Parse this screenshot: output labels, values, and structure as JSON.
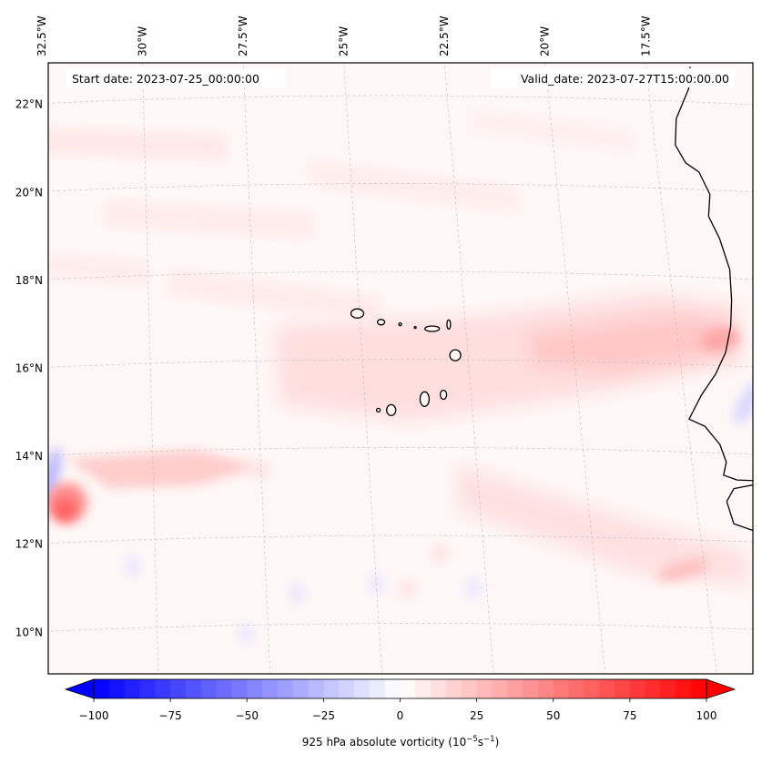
{
  "chart_data": {
    "type": "heatmap",
    "title": "",
    "map": {
      "projection": "conic",
      "lon_range": [
        -33,
        -15.5
      ],
      "lat_range": [
        9,
        22.8
      ],
      "lon_ticks": [
        {
          "value": -32.5,
          "label": "32.5°W"
        },
        {
          "value": -30,
          "label": "30°W"
        },
        {
          "value": -27.5,
          "label": "27.5°W"
        },
        {
          "value": -25,
          "label": "25°W"
        },
        {
          "value": -22.5,
          "label": "22.5°W"
        },
        {
          "value": -20,
          "label": "20°W"
        },
        {
          "value": -17.5,
          "label": "17.5°W"
        }
      ],
      "lat_ticks": [
        {
          "value": 22,
          "label": "22°N"
        },
        {
          "value": 20,
          "label": "20°N"
        },
        {
          "value": 18,
          "label": "18°N"
        },
        {
          "value": 16,
          "label": "16°N"
        },
        {
          "value": 14,
          "label": "14°N"
        },
        {
          "value": 12,
          "label": "12°N"
        },
        {
          "value": 10,
          "label": "10°N"
        }
      ],
      "gridlines": true,
      "coastlines": true
    },
    "annotations": {
      "start_date": "Start date: 2023-07-25_00:00:00",
      "valid_date": "Valid_date: 2023-07-27T15:00:00.00"
    },
    "field": {
      "variable": "925 hPa absolute vorticity",
      "units": "10^-5 s^-1",
      "background_value": 3,
      "features": [
        {
          "name": "vortex-core",
          "lon": -32.0,
          "lat": 12.9,
          "peak": 60,
          "description": "strong positive vorticity maximum with curved tail to the east"
        },
        {
          "name": "vortex-tail",
          "lon": -30.0,
          "lat": 13.6,
          "peak": 25
        },
        {
          "name": "vortex-negative-arc",
          "lon": -32.4,
          "lat": 13.2,
          "peak": -30
        },
        {
          "name": "coastal-band-max",
          "lon": -16.5,
          "lat": 16.6,
          "peak": 35
        },
        {
          "name": "zonal-positive-band",
          "lon": -21.0,
          "lat": 16.0,
          "peak": 20
        },
        {
          "name": "southern-band-max",
          "lon": -18.0,
          "lat": 11.3,
          "peak": 25
        },
        {
          "name": "coastal-negative-patch",
          "lon": -16.0,
          "lat": 15.2,
          "peak": -15
        }
      ]
    },
    "colorbar": {
      "label_main": "925 hPa absolute vorticity (10",
      "label_exp1": "−5",
      "label_mid": "s",
      "label_exp2": "−1",
      "label_end": ")",
      "colormap": "bwr",
      "vmin": -100,
      "vmax": 100,
      "levels": 41,
      "extend": "both",
      "ticks": [
        {
          "value": -100,
          "label": "−100"
        },
        {
          "value": -75,
          "label": "−75"
        },
        {
          "value": -50,
          "label": "−50"
        },
        {
          "value": -25,
          "label": "−25"
        },
        {
          "value": 0,
          "label": "0"
        },
        {
          "value": 25,
          "label": "25"
        },
        {
          "value": 50,
          "label": "50"
        },
        {
          "value": 75,
          "label": "75"
        },
        {
          "value": 100,
          "label": "100"
        }
      ],
      "color_min": "#0000ff",
      "color_mid": "#ffffff",
      "color_max": "#ff0000"
    }
  }
}
